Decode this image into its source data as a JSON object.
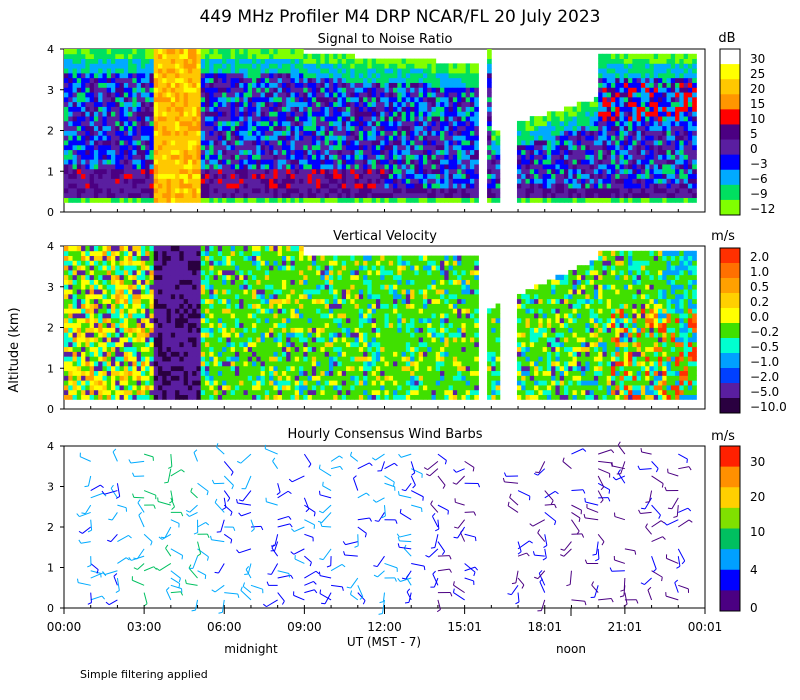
{
  "title": "449 MHz Profiler M4 DRP NCAR/FL 20 July 2023",
  "ylabel": "Altitude (km)",
  "xlabel": "UT  (MST - 7)",
  "x_ticks": [
    "00:00",
    "03:00",
    "06:00",
    "09:00",
    "12:00",
    "15:01",
    "18:01",
    "21:01",
    "00:01"
  ],
  "midnight_label": "midnight",
  "noon_label": "noon",
  "footnote": "Simple filtering applied",
  "y_ticks": [
    "0",
    "1",
    "2",
    "3",
    "4"
  ],
  "chart_data": [
    {
      "type": "heatmap",
      "title": "Signal to Noise Ratio",
      "ylim": [
        0,
        4
      ],
      "xlim_hours": [
        0,
        24
      ],
      "colorbar": {
        "unit": "dB",
        "labels": [
          "30",
          "25",
          "20",
          "15",
          "10",
          "5",
          "0",
          "−3",
          "−6",
          "−9",
          "−12"
        ],
        "colors": [
          "#ffffff",
          "#ffff00",
          "#ffc800",
          "#ff9600",
          "#ff0000",
          "#4b0082",
          "#5a1ea0",
          "#0000ff",
          "#00aaff",
          "#00e060",
          "#80ff00"
        ]
      },
      "gaps_hours": [
        [
          15.6,
          15.9
        ],
        [
          16.3,
          16.9
        ]
      ]
    },
    {
      "type": "heatmap",
      "title": "Vertical Velocity",
      "ylim": [
        0,
        4
      ],
      "xlim_hours": [
        0,
        24
      ],
      "colorbar": {
        "unit": "m/s",
        "labels": [
          "2.0",
          "1.0",
          "0.5",
          "0.2",
          "0.0",
          "−0.2",
          "−0.5",
          "−1.0",
          "−2.0",
          "−5.0",
          "−10.0"
        ],
        "colors": [
          "#ff3000",
          "#ff7000",
          "#ffa000",
          "#ffd000",
          "#ffff00",
          "#40e000",
          "#00ffd0",
          "#00a0ff",
          "#0040ff",
          "#5a1ea0",
          "#2a0040"
        ]
      },
      "gaps_hours": [
        [
          15.6,
          15.9
        ],
        [
          16.3,
          16.9
        ]
      ]
    },
    {
      "type": "wind_barbs",
      "title": "Hourly Consensus Wind Barbs",
      "ylim": [
        0,
        4
      ],
      "xlim_hours": [
        0,
        24
      ],
      "colorbar": {
        "unit": "m/s",
        "labels": [
          "30",
          "20",
          "10",
          "4",
          "0"
        ],
        "colors": [
          "#ff2000",
          "#ff9000",
          "#ffd000",
          "#80e000",
          "#00c060",
          "#00a0ff",
          "#0000ff",
          "#4b0082"
        ]
      }
    }
  ]
}
